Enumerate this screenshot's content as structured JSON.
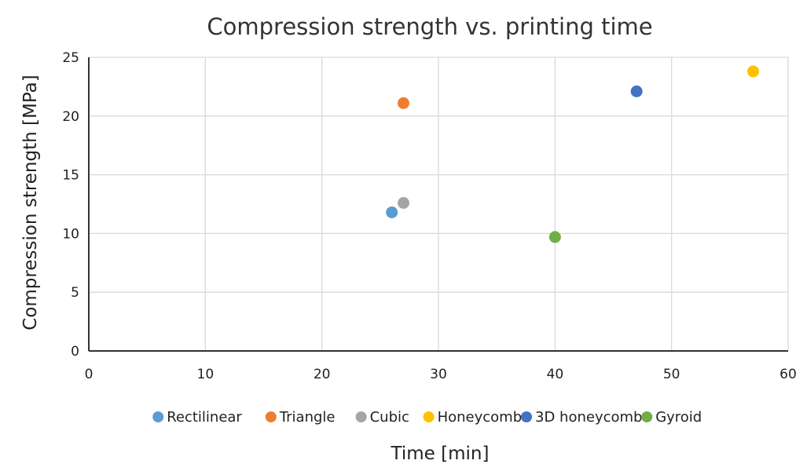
{
  "chart_data": {
    "type": "scatter",
    "title": "Compression strength vs. printing time",
    "xlabel": "Time [min]",
    "ylabel": "Compression strength [MPa]",
    "xlim": [
      0,
      60
    ],
    "ylim": [
      0,
      25
    ],
    "xticks": [
      0,
      10,
      20,
      30,
      40,
      50,
      60
    ],
    "yticks": [
      0,
      5,
      10,
      15,
      20,
      25
    ],
    "grid": true,
    "legend_position": "bottom",
    "series": [
      {
        "name": "Rectilinear",
        "color": "#5b9bd5",
        "points": [
          {
            "x": 26,
            "y": 11.8
          }
        ]
      },
      {
        "name": "Triangle",
        "color": "#ed7d31",
        "points": [
          {
            "x": 27,
            "y": 21.1
          }
        ]
      },
      {
        "name": "Cubic",
        "color": "#a5a5a5",
        "points": [
          {
            "x": 27,
            "y": 12.6
          }
        ]
      },
      {
        "name": "Honeycomb",
        "color": "#ffc000",
        "points": [
          {
            "x": 57,
            "y": 23.8
          }
        ]
      },
      {
        "name": "3D honeycomb",
        "color": "#4472c4",
        "points": [
          {
            "x": 47,
            "y": 22.1
          }
        ]
      },
      {
        "name": "Gyroid",
        "color": "#70ad47",
        "points": [
          {
            "x": 40,
            "y": 9.7
          }
        ]
      }
    ]
  }
}
